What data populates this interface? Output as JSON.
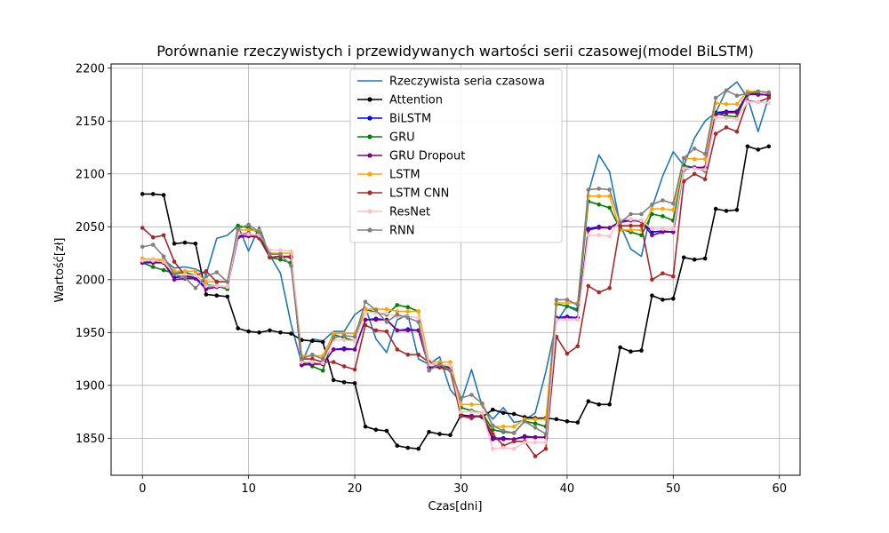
{
  "chart_data": {
    "type": "line",
    "title": "Porównanie rzeczywistych i przewidywanych wartości serii czasowej(model BiLSTM)",
    "xlabel": "Czas[dni]",
    "ylabel": "Wartość[zł]",
    "xlim": [
      -2.95,
      61.95
    ],
    "ylim": [
      1815,
      2204
    ],
    "xticks": [
      0,
      10,
      20,
      30,
      40,
      50,
      60
    ],
    "yticks": [
      1850,
      1900,
      1950,
      2000,
      2050,
      2100,
      2150,
      2200
    ],
    "grid": true,
    "legend_position": "top-center",
    "x": [
      0,
      1,
      2,
      3,
      4,
      5,
      6,
      7,
      8,
      9,
      10,
      11,
      12,
      13,
      14,
      15,
      16,
      17,
      18,
      19,
      20,
      21,
      22,
      23,
      24,
      25,
      26,
      27,
      28,
      29,
      30,
      31,
      32,
      33,
      34,
      35,
      36,
      37,
      38,
      39,
      40,
      41,
      42,
      43,
      44,
      45,
      46,
      47,
      48,
      49,
      50,
      51,
      52,
      53,
      54,
      55,
      56,
      57,
      58,
      59
    ],
    "series": [
      {
        "name": "Rzeczywista seria czasowa",
        "color": "#1f77b4",
        "marker": false,
        "values": [
          2016,
          2018,
          2019,
          2011,
          2012,
          2010,
          2005,
          2039,
          2042,
          2051,
          2027,
          2050,
          2023,
          2006,
          1958,
          1921,
          1944,
          1942,
          1951,
          1951,
          1967,
          1974,
          1944,
          1931,
          1962,
          1967,
          1925,
          1920,
          1927,
          1896,
          1884,
          1915,
          1880,
          1868,
          1879,
          1865,
          1867,
          1874,
          1913,
          1960,
          1975,
          1970,
          2082,
          2118,
          2102,
          2052,
          2029,
          2022,
          2068,
          2098,
          2121,
          2108,
          2134,
          2150,
          2158,
          2179,
          2187,
          2172,
          2140,
          2173
        ]
      },
      {
        "name": "Attention",
        "color": "#000000",
        "marker": true,
        "values": [
          2081,
          2081,
          2080,
          2034,
          2035,
          2034,
          1986,
          1985,
          1984,
          1954,
          1951,
          1950,
          1952,
          1950,
          1949,
          1943,
          1942,
          1941,
          1905,
          1903,
          1902,
          1861,
          1858,
          1857,
          1843,
          1841,
          1840,
          1856,
          1854,
          1853,
          1872,
          1871,
          1870,
          1877,
          1874,
          1873,
          1870,
          1869,
          1869,
          1868,
          1866,
          1865,
          1885,
          1882,
          1882,
          1936,
          1932,
          1933,
          1985,
          1981,
          1982,
          2021,
          2019,
          2020,
          2067,
          2065,
          2066,
          2126,
          2123,
          2126
        ]
      },
      {
        "name": "BiLSTM",
        "color": "#0000ff",
        "marker": true,
        "values": [
          2016,
          2017,
          2017,
          2002,
          2003,
          2002,
          1993,
          1994,
          1993,
          2041,
          2043,
          2041,
          2021,
          2022,
          2021,
          1920,
          1921,
          1920,
          1934,
          1935,
          1934,
          1962,
          1963,
          1962,
          1952,
          1953,
          1952,
          1917,
          1918,
          1917,
          1871,
          1871,
          1871,
          1850,
          1850,
          1849,
          1852,
          1851,
          1851,
          1964,
          1965,
          1964,
          2048,
          2050,
          2049,
          2055,
          2057,
          2056,
          2045,
          2046,
          2045,
          2105,
          2106,
          2106,
          2158,
          2159,
          2159,
          2176,
          2175,
          2175
        ]
      },
      {
        "name": "GRU",
        "color": "#008000",
        "marker": true,
        "values": [
          2016,
          2012,
          2009,
          2006,
          2007,
          2004,
          1995,
          1994,
          1991,
          2051,
          2049,
          2044,
          2021,
          2019,
          2016,
          1923,
          1918,
          1914,
          1948,
          1945,
          1942,
          1972,
          1969,
          1967,
          1976,
          1974,
          1970,
          1921,
          1919,
          1917,
          1879,
          1876,
          1874,
          1858,
          1856,
          1855,
          1866,
          1864,
          1861,
          1977,
          1975,
          1972,
          2074,
          2071,
          2068,
          2048,
          2045,
          2042,
          2062,
          2060,
          2056,
          2108,
          2106,
          2103,
          2157,
          2155,
          2154,
          2177,
          2176,
          2174
        ]
      },
      {
        "name": "GRU Dropout",
        "color": "#800080",
        "marker": true,
        "values": [
          2016,
          2016,
          2016,
          2000,
          2001,
          2001,
          1991,
          1993,
          1993,
          2040,
          2041,
          2040,
          2021,
          2022,
          2021,
          1919,
          1920,
          1920,
          1934,
          1934,
          1934,
          1962,
          1962,
          1962,
          1952,
          1952,
          1952,
          1917,
          1917,
          1917,
          1871,
          1871,
          1871,
          1849,
          1849,
          1849,
          1851,
          1851,
          1851,
          1964,
          1964,
          1964,
          2047,
          2049,
          2049,
          2054,
          2056,
          2055,
          2042,
          2045,
          2045,
          2104,
          2106,
          2106,
          2156,
          2158,
          2158,
          2175,
          2175,
          2175
        ]
      },
      {
        "name": "LSTM",
        "color": "#ffa500",
        "marker": true,
        "values": [
          2020,
          2019,
          2019,
          2008,
          2008,
          2008,
          1998,
          1998,
          1998,
          2047,
          2047,
          2046,
          2025,
          2025,
          2025,
          1928,
          1928,
          1928,
          1949,
          1949,
          1949,
          1972,
          1972,
          1972,
          1970,
          1970,
          1970,
          1922,
          1922,
          1922,
          1882,
          1882,
          1882,
          1861,
          1861,
          1861,
          1868,
          1868,
          1868,
          1978,
          1978,
          1978,
          2079,
          2079,
          2079,
          2047,
          2047,
          2047,
          2067,
          2067,
          2066,
          2115,
          2114,
          2114,
          2167,
          2166,
          2166,
          2178,
          2178,
          2177
        ]
      },
      {
        "name": "LSTM CNN",
        "color": "#a52a2a",
        "marker": true,
        "values": [
          2049,
          2040,
          2042,
          2017,
          2004,
          2004,
          2008,
          1998,
          1998,
          2043,
          2044,
          2039,
          2021,
          2022,
          2022,
          1925,
          1925,
          1922,
          1922,
          1918,
          1915,
          1957,
          1952,
          1951,
          1934,
          1929,
          1929,
          1922,
          1917,
          1914,
          1871,
          1869,
          1872,
          1854,
          1843,
          1847,
          1847,
          1833,
          1840,
          1946,
          1930,
          1937,
          1994,
          1988,
          1992,
          2051,
          2051,
          2051,
          2000,
          2006,
          2003,
          2093,
          2100,
          2095,
          2138,
          2144,
          2140,
          2169,
          2168,
          2172
        ]
      },
      {
        "name": "ResNet",
        "color": "#ffc0cb",
        "marker": true,
        "values": [
          2018,
          2018,
          2017,
          2005,
          2005,
          2004,
          1994,
          1994,
          1993,
          2043,
          2043,
          2042,
          2028,
          2028,
          2027,
          1922,
          1922,
          1921,
          1943,
          1943,
          1942,
          1969,
          1969,
          1968,
          1965,
          1965,
          1964,
          1920,
          1920,
          1919,
          1875,
          1875,
          1874,
          1840,
          1841,
          1840,
          1846,
          1846,
          1846,
          1962,
          1962,
          1962,
          2042,
          2042,
          2041,
          2057,
          2057,
          2056,
          2048,
          2048,
          2048,
          2105,
          2105,
          2104,
          2153,
          2153,
          2152,
          2168,
          2168,
          2167
        ]
      },
      {
        "name": "RNN",
        "color": "#808080",
        "marker": true,
        "values": [
          2031,
          2033,
          2022,
          2005,
          2002,
          1992,
          2003,
          2007,
          1998,
          2048,
          2052,
          2045,
          2024,
          2024,
          2013,
          1925,
          1929,
          1925,
          1945,
          1947,
          1946,
          1979,
          1971,
          1960,
          1967,
          1964,
          1960,
          1914,
          1920,
          1914,
          1888,
          1891,
          1883,
          1862,
          1857,
          1855,
          1866,
          1860,
          1854,
          1981,
          1981,
          1976,
          2085,
          2086,
          2085,
          2054,
          2062,
          2062,
          2071,
          2075,
          2072,
          2115,
          2124,
          2119,
          2172,
          2179,
          2174,
          2176,
          2178,
          2177
        ]
      }
    ]
  }
}
